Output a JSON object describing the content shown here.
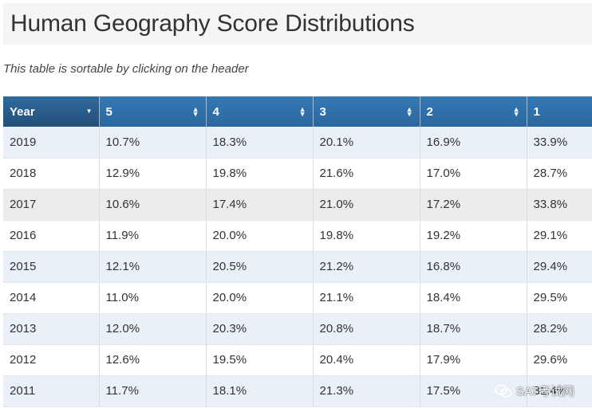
{
  "page": {
    "title": "Human Geography Score Distributions",
    "note": "This table is sortable by clicking on the header"
  },
  "table": {
    "headers": [
      "Year",
      "5",
      "4",
      "3",
      "2",
      "1"
    ],
    "rows": [
      [
        "2019",
        "10.7%",
        "18.3%",
        "20.1%",
        "16.9%",
        "33.9%"
      ],
      [
        "2018",
        "12.9%",
        "19.8%",
        "21.6%",
        "17.0%",
        "28.7%"
      ],
      [
        "2017",
        "10.6%",
        "17.4%",
        "21.0%",
        "17.2%",
        "33.8%"
      ],
      [
        "2016",
        "11.9%",
        "20.0%",
        "19.8%",
        "19.2%",
        "29.1%"
      ],
      [
        "2015",
        "12.1%",
        "20.5%",
        "21.2%",
        "16.8%",
        "29.4%"
      ],
      [
        "2014",
        "11.0%",
        "20.0%",
        "21.1%",
        "18.4%",
        "29.5%"
      ],
      [
        "2013",
        "12.0%",
        "20.3%",
        "20.8%",
        "18.7%",
        "28.2%"
      ],
      [
        "2012",
        "12.6%",
        "19.5%",
        "20.4%",
        "17.9%",
        "29.6%"
      ],
      [
        "2011",
        "11.7%",
        "18.1%",
        "21.3%",
        "17.5%",
        "31.4%"
      ]
    ]
  },
  "watermark": {
    "text": "SAT考试网",
    "icon": "wechat-icon"
  },
  "colors": {
    "header": "#2e6da4",
    "header_active": "#244f79",
    "row_alt": "#e9f0f8",
    "row_hover": "#ececec"
  }
}
